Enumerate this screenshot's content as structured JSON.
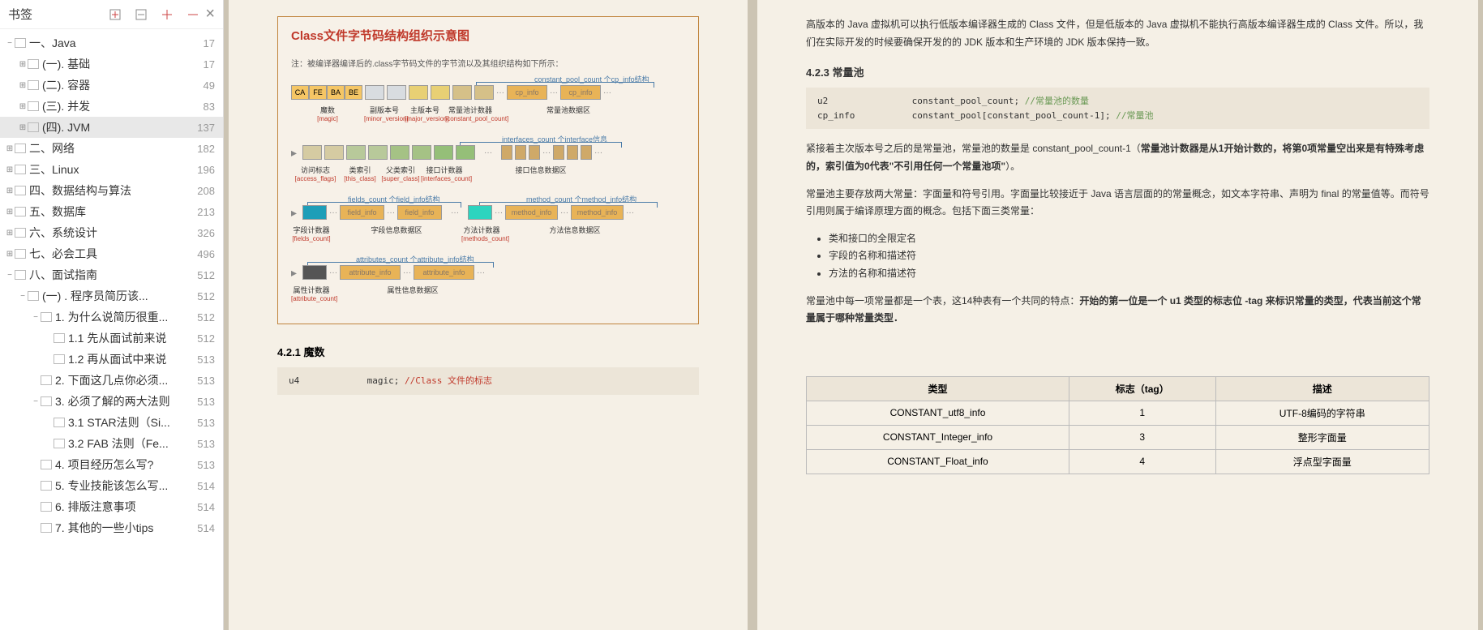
{
  "sidebar": {
    "title": "书签",
    "tools": [
      "expand-all-icon",
      "collapse-all-icon",
      "add-bookmark-icon",
      "remove-bookmark-icon"
    ],
    "items": [
      {
        "indent": 0,
        "label": "一、Java",
        "count": 17,
        "exp": "−",
        "active": false
      },
      {
        "indent": 1,
        "label": "(一). 基础",
        "count": 17,
        "exp": "⊞",
        "active": false
      },
      {
        "indent": 1,
        "label": "(二). 容器",
        "count": 49,
        "exp": "⊞",
        "active": false
      },
      {
        "indent": 1,
        "label": "(三). 并发",
        "count": 83,
        "exp": "⊞",
        "active": false
      },
      {
        "indent": 1,
        "label": "(四). JVM",
        "count": 137,
        "exp": "⊞",
        "active": true
      },
      {
        "indent": 0,
        "label": "二、网络",
        "count": 182,
        "exp": "⊞",
        "active": false
      },
      {
        "indent": 0,
        "label": "三、Linux",
        "count": 196,
        "exp": "⊞",
        "active": false
      },
      {
        "indent": 0,
        "label": "四、数据结构与算法",
        "count": 208,
        "exp": "⊞",
        "active": false
      },
      {
        "indent": 0,
        "label": "五、数据库",
        "count": 213,
        "exp": "⊞",
        "active": false
      },
      {
        "indent": 0,
        "label": "六、系统设计",
        "count": 326,
        "exp": "⊞",
        "active": false
      },
      {
        "indent": 0,
        "label": "七、必会工具",
        "count": 496,
        "exp": "⊞",
        "active": false
      },
      {
        "indent": 0,
        "label": "八、面试指南",
        "count": 512,
        "exp": "−",
        "active": false
      },
      {
        "indent": 1,
        "label": " (一) . 程序员简历该...",
        "count": 512,
        "exp": "−",
        "active": false
      },
      {
        "indent": 2,
        "label": "1. 为什么说简历很重...",
        "count": 512,
        "exp": "−",
        "active": false
      },
      {
        "indent": 3,
        "label": "1.1 先从面试前来说",
        "count": 512,
        "exp": "",
        "active": false
      },
      {
        "indent": 3,
        "label": "1.2 再从面试中来说",
        "count": 513,
        "exp": "",
        "active": false
      },
      {
        "indent": 2,
        "label": "2. 下面这几点你必须...",
        "count": 513,
        "exp": "",
        "active": false
      },
      {
        "indent": 2,
        "label": "3. 必须了解的两大法则",
        "count": 513,
        "exp": "−",
        "active": false
      },
      {
        "indent": 3,
        "label": "3.1 STAR法则（Si...",
        "count": 513,
        "exp": "",
        "active": false
      },
      {
        "indent": 3,
        "label": "3.2 FAB 法则（Fe...",
        "count": 513,
        "exp": "",
        "active": false
      },
      {
        "indent": 2,
        "label": "4. 项目经历怎么写?",
        "count": 513,
        "exp": "",
        "active": false
      },
      {
        "indent": 2,
        "label": "5. 专业技能该怎么写...",
        "count": 514,
        "exp": "",
        "active": false
      },
      {
        "indent": 2,
        "label": "6. 排版注意事项",
        "count": 514,
        "exp": "",
        "active": false
      },
      {
        "indent": 2,
        "label": "7. 其他的一些小tips",
        "count": 514,
        "exp": "",
        "active": false
      }
    ]
  },
  "diagram": {
    "title": "Class文件字节码结构组织示意图",
    "note": "注：被编译器编译后的.class字节码文件的字节流以及其组织结构如下所示：",
    "row1": {
      "magic_cells": [
        "CA",
        "FE",
        "BA",
        "BE"
      ],
      "cp_label": "cp_info",
      "bracket": "constant_pool_count 个cp_info结构",
      "labels": [
        {
          "zh": "魔数",
          "en": "[magic]"
        },
        {
          "zh": "副版本号",
          "en": "[minor_version]"
        },
        {
          "zh": "主版本号",
          "en": "[major_version]"
        },
        {
          "zh": "常量池计数器",
          "en": "[constant_pool_count]"
        },
        {
          "zh": "常量池数据区",
          "en": ""
        }
      ]
    },
    "row2": {
      "bracket": "interfaces_count 个interface信息",
      "labels": [
        {
          "zh": "访问标志",
          "en": "[access_flags]"
        },
        {
          "zh": "类索引",
          "en": "[this_class]"
        },
        {
          "zh": "父类索引",
          "en": "[super_class]"
        },
        {
          "zh": "接口计数器",
          "en": "[interfaces_count]"
        },
        {
          "zh": "接口信息数据区",
          "en": ""
        }
      ]
    },
    "row3": {
      "field_label": "field_info",
      "method_label": "method_info",
      "bracket1": "fields_count 个field_info结构",
      "bracket2": "method_count 个method_info结构",
      "labels": [
        {
          "zh": "字段计数器",
          "en": "[fields_count]"
        },
        {
          "zh": "字段信息数据区",
          "en": ""
        },
        {
          "zh": "方法计数器",
          "en": "[methods_count]"
        },
        {
          "zh": "方法信息数据区",
          "en": ""
        }
      ]
    },
    "row4": {
      "attr_label": "attribute_info",
      "bracket": "attributes_count 个attribute_info结构",
      "labels": [
        {
          "zh": "属性计数器",
          "en": "[attribute_count]"
        },
        {
          "zh": "属性信息数据区",
          "en": ""
        }
      ]
    },
    "colors": {
      "magic": "#f5c665",
      "minor": "#d8dce0",
      "major": "#e8d074",
      "cpcount": "#d5c088",
      "cpinfo": "#e8b357",
      "access": "#d5cba2",
      "this": "#b8c99a",
      "super": "#a5c285",
      "ifcount": "#95bf78",
      "ifdata": "#cfa968",
      "fcount": "#1e9eb8",
      "finfo": "#e8b357",
      "mcount": "#2dd4bf",
      "minfo": "#e8b357",
      "acount": "#555",
      "ainfo": "#e8b357"
    }
  },
  "left_page": {
    "sec_421": "4.2.1 魔数",
    "code_421": {
      "type": "u4",
      "name": "magic;",
      "comment": "//Class 文件的标志"
    }
  },
  "right_page": {
    "para1": "高版本的 Java 虚拟机可以执行低版本编译器生成的 Class 文件，但是低版本的 Java 虚拟机不能执行高版本编译器生成的 Class 文件。所以，我们在实际开发的时候要确保开发的的 JDK 版本和生产环境的 JDK 版本保持一致。",
    "heading_423": "4.2.3 常量池",
    "code_423_l1": {
      "type": "u2",
      "name": "constant_pool_count;",
      "comment": "//常量池的数量"
    },
    "code_423_l2": {
      "type": "cp_info",
      "name": "constant_pool[constant_pool_count-1];",
      "comment": "//常量池"
    },
    "para2_a": "紧接着主次版本号之后的是常量池，常量池的数量是 constant_pool_count-1（",
    "para2_b": "常量池计数器是从1开始计数的，将第0项常量空出来是有特殊考虑的，索引值为0代表\"不引用任何一个常量池项\"",
    "para2_c": "）。",
    "para3": "常量池主要存放两大常量：字面量和符号引用。字面量比较接近于 Java 语言层面的的常量概念，如文本字符串、声明为 final 的常量值等。而符号引用则属于编译原理方面的概念。包括下面三类常量：",
    "list": [
      "类和接口的全限定名",
      "字段的名称和描述符",
      "方法的名称和描述符"
    ],
    "para4_a": "常量池中每一项常量都是一个表，这14种表有一个共同的特点：",
    "para4_b": "开始的第一位是一个 u1 类型的标志位 -tag 来标识常量的类型，代表当前这个常量属于哪种常量类型．",
    "table": {
      "headers": [
        "类型",
        "标志（tag）",
        "描述"
      ],
      "rows": [
        [
          "CONSTANT_utf8_info",
          "1",
          "UTF-8编码的字符串"
        ],
        [
          "CONSTANT_Integer_info",
          "3",
          "整形字面量"
        ],
        [
          "CONSTANT_Float_info",
          "4",
          "浮点型字面量"
        ]
      ]
    }
  }
}
